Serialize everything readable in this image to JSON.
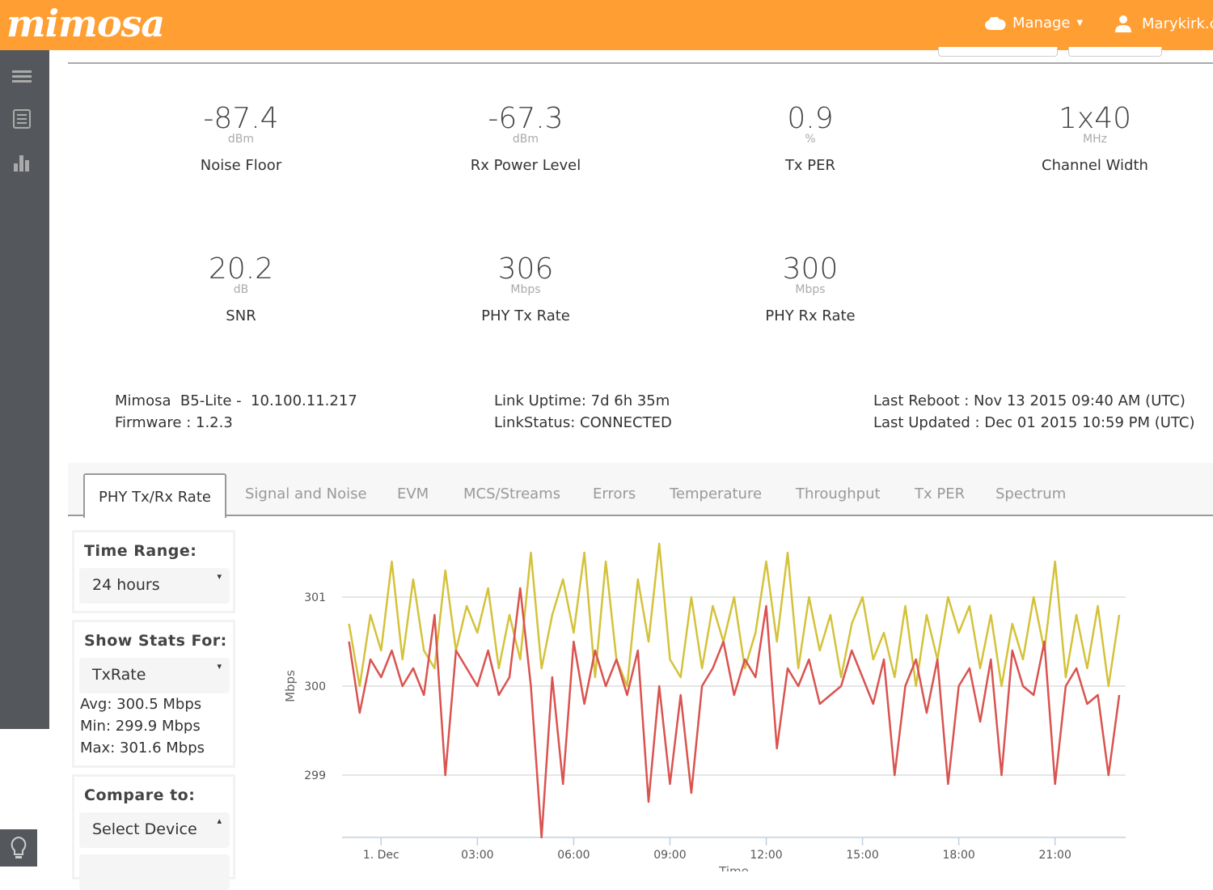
{
  "header": {
    "logo": "mimosa",
    "manage_label": "Manage",
    "user_label": "Marykirk.c"
  },
  "stats": [
    {
      "value": "-87.4",
      "unit": "dBm",
      "label": "Noise Floor"
    },
    {
      "value": "-67.3",
      "unit": "dBm",
      "label": "Rx Power Level"
    },
    {
      "value": "0.9",
      "unit": "%",
      "label": "Tx PER"
    },
    {
      "value": "1x40",
      "unit": "MHz",
      "label": "Channel Width"
    },
    {
      "value": "20.2",
      "unit": "dB",
      "label": "SNR"
    },
    {
      "value": "306",
      "unit": "Mbps",
      "label": "PHY Tx Rate"
    },
    {
      "value": "300",
      "unit": "Mbps",
      "label": "PHY Rx Rate"
    }
  ],
  "info": {
    "device": "Mimosa  B5-Lite -  10.100.11.217",
    "firmware": "Firmware : 1.2.3",
    "uptime": "Link Uptime: 7d 6h 35m",
    "link_status": "LinkStatus: CONNECTED",
    "last_reboot": "Last Reboot : Nov 13 2015 09:40 AM (UTC)",
    "last_updated": "Last Updated : Dec 01 2015 10:59 PM (UTC)"
  },
  "tabs": [
    "PHY Tx/Rx Rate",
    "Signal and Noise",
    "EVM",
    "MCS/Streams",
    "Errors",
    "Temperature",
    "Throughput",
    "Tx PER",
    "Spectrum"
  ],
  "active_tab": "PHY Tx/Rx Rate",
  "panels": {
    "time_range": {
      "title": "Time Range:",
      "value": "24 hours"
    },
    "show_stats": {
      "title": "Show Stats For:",
      "value": "TxRate",
      "avg": "Avg: 300.5 Mbps",
      "min": "Min: 299.9 Mbps",
      "max": "Max: 301.6 Mbps"
    },
    "compare": {
      "title": "Compare to:",
      "value": "Select Device"
    }
  },
  "colors": {
    "header": "#ff9e33",
    "sidebar": "#54585c",
    "series_yellow": "#d4c23a",
    "series_red": "#d9534f"
  },
  "icons": {
    "sidebar": [
      "menu-icon",
      "list-icon",
      "bar-chart-icon",
      "lightbulb-icon"
    ],
    "header": [
      "cloud-icon",
      "user-icon"
    ]
  },
  "chart_data": {
    "type": "line",
    "ylabel": "Mbps",
    "xlabel": "Time",
    "ylim": [
      298.3,
      301.7
    ],
    "xlim": [
      "2015-11-30T22:47",
      "2015-12-01T23:12"
    ],
    "yticks": [
      {
        "v": 299,
        "label": "299"
      },
      {
        "v": 300,
        "label": "300"
      },
      {
        "v": 301,
        "label": "301"
      }
    ],
    "xticks": [
      {
        "t": "2015-12-01T00:00",
        "label": "1. Dec"
      },
      {
        "t": "2015-12-01T03:00",
        "label": "03:00"
      },
      {
        "t": "2015-12-01T06:00",
        "label": "06:00"
      },
      {
        "t": "2015-12-01T09:00",
        "label": "09:00"
      },
      {
        "t": "2015-12-01T12:00",
        "label": "12:00"
      },
      {
        "t": "2015-12-01T15:00",
        "label": "15:00"
      },
      {
        "t": "2015-12-01T18:00",
        "label": "18:00"
      },
      {
        "t": "2015-12-01T21:00",
        "label": "21:00"
      }
    ],
    "grid": true,
    "legend": "none",
    "x": [
      "2015-11-30T23:00",
      "2015-11-30T23:20",
      "2015-11-30T23:40",
      "2015-12-01T00:00",
      "2015-12-01T00:20",
      "2015-12-01T00:40",
      "2015-12-01T01:00",
      "2015-12-01T01:20",
      "2015-12-01T01:40",
      "2015-12-01T02:00",
      "2015-12-01T02:20",
      "2015-12-01T02:40",
      "2015-12-01T03:00",
      "2015-12-01T03:20",
      "2015-12-01T03:40",
      "2015-12-01T04:00",
      "2015-12-01T04:20",
      "2015-12-01T04:40",
      "2015-12-01T05:00",
      "2015-12-01T05:20",
      "2015-12-01T05:40",
      "2015-12-01T06:00",
      "2015-12-01T06:20",
      "2015-12-01T06:40",
      "2015-12-01T07:00",
      "2015-12-01T07:20",
      "2015-12-01T07:40",
      "2015-12-01T08:00",
      "2015-12-01T08:20",
      "2015-12-01T08:40",
      "2015-12-01T09:00",
      "2015-12-01T09:20",
      "2015-12-01T09:40",
      "2015-12-01T10:00",
      "2015-12-01T10:20",
      "2015-12-01T10:40",
      "2015-12-01T11:00",
      "2015-12-01T11:20",
      "2015-12-01T11:40",
      "2015-12-01T12:00",
      "2015-12-01T12:20",
      "2015-12-01T12:40",
      "2015-12-01T13:00",
      "2015-12-01T13:20",
      "2015-12-01T13:40",
      "2015-12-01T14:00",
      "2015-12-01T14:20",
      "2015-12-01T14:40",
      "2015-12-01T15:00",
      "2015-12-01T15:20",
      "2015-12-01T15:40",
      "2015-12-01T16:00",
      "2015-12-01T16:20",
      "2015-12-01T16:40",
      "2015-12-01T17:00",
      "2015-12-01T17:20",
      "2015-12-01T17:40",
      "2015-12-01T18:00",
      "2015-12-01T18:20",
      "2015-12-01T18:40",
      "2015-12-01T19:00",
      "2015-12-01T19:20",
      "2015-12-01T19:40",
      "2015-12-01T20:00",
      "2015-12-01T20:20",
      "2015-12-01T20:40",
      "2015-12-01T21:00",
      "2015-12-01T21:20",
      "2015-12-01T21:40",
      "2015-12-01T22:00",
      "2015-12-01T22:20",
      "2015-12-01T22:40",
      "2015-12-01T23:00"
    ],
    "series": [
      {
        "color": "#d4c23a",
        "values": [
          300.7,
          300.0,
          300.8,
          300.4,
          301.4,
          300.3,
          301.2,
          300.4,
          300.2,
          301.3,
          300.4,
          300.9,
          300.6,
          301.1,
          300.2,
          300.8,
          300.3,
          301.5,
          300.2,
          300.8,
          301.2,
          300.6,
          301.5,
          300.1,
          301.4,
          300.3,
          300.0,
          301.2,
          300.5,
          301.6,
          300.3,
          300.1,
          301.0,
          300.2,
          300.9,
          300.5,
          301.0,
          300.2,
          300.6,
          301.4,
          300.5,
          301.5,
          300.2,
          301.0,
          300.4,
          300.8,
          300.1,
          300.7,
          301.0,
          300.3,
          300.6,
          300.1,
          300.9,
          300.0,
          300.8,
          300.3,
          301.0,
          300.6,
          300.9,
          300.2,
          300.8,
          300.0,
          300.7,
          300.3,
          301.0,
          300.4,
          301.4,
          300.1,
          300.8,
          300.2,
          300.9,
          300.0,
          300.8
        ]
      },
      {
        "color": "#d9534f",
        "values": [
          300.5,
          299.7,
          300.3,
          300.1,
          300.4,
          300.0,
          300.2,
          299.9,
          300.8,
          299.0,
          300.4,
          300.2,
          300.0,
          300.4,
          299.9,
          300.1,
          301.1,
          300.0,
          298.3,
          300.1,
          298.9,
          300.5,
          299.8,
          300.4,
          300.0,
          300.3,
          299.9,
          300.4,
          298.7,
          300.0,
          298.9,
          299.9,
          298.8,
          300.0,
          300.2,
          300.5,
          299.9,
          300.3,
          300.1,
          300.9,
          299.3,
          300.2,
          300.0,
          300.3,
          299.8,
          299.9,
          300.0,
          300.4,
          300.1,
          299.8,
          300.3,
          299.0,
          300.0,
          300.3,
          299.7,
          300.3,
          298.9,
          300.0,
          300.2,
          299.6,
          300.3,
          299.0,
          300.4,
          300.0,
          299.9,
          300.5,
          298.9,
          300.0,
          300.2,
          299.8,
          299.9,
          299.0,
          299.9
        ]
      }
    ]
  }
}
